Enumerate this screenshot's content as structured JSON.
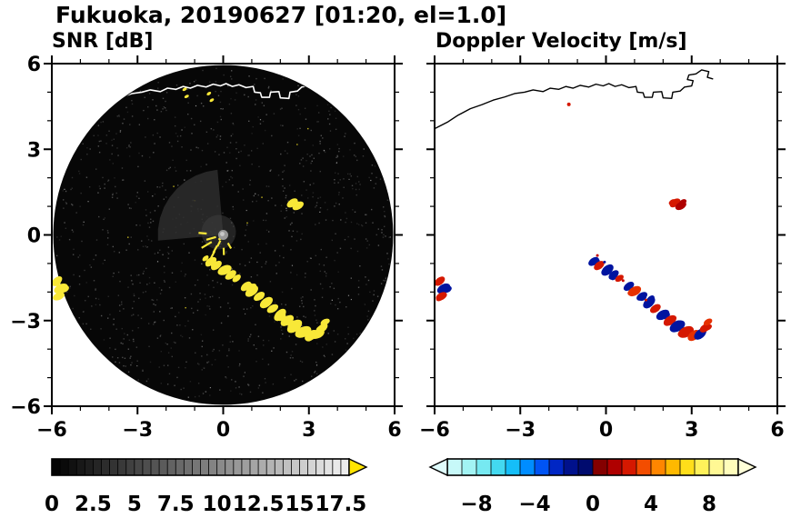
{
  "header": {
    "title": "Fukuoka, 20190627 [01:20, el=1.0]"
  },
  "panels": {
    "snr": {
      "title": "SNR [dB]"
    },
    "doppler": {
      "title": "Doppler Velocity [m/s]"
    }
  },
  "shared": {
    "coastline": [
      [
        -6.0,
        3.72
      ],
      [
        -5.55,
        3.95
      ],
      [
        -5.2,
        4.18
      ],
      [
        -4.75,
        4.42
      ],
      [
        -4.35,
        4.56
      ],
      [
        -3.95,
        4.72
      ],
      [
        -3.55,
        4.83
      ],
      [
        -3.2,
        4.95
      ],
      [
        -2.85,
        5.0
      ],
      [
        -2.55,
        5.08
      ],
      [
        -2.2,
        5.02
      ],
      [
        -1.95,
        5.14
      ],
      [
        -1.65,
        5.1
      ],
      [
        -1.4,
        5.2
      ],
      [
        -1.15,
        5.14
      ],
      [
        -0.9,
        5.24
      ],
      [
        -0.6,
        5.18
      ],
      [
        -0.35,
        5.28
      ],
      [
        -0.1,
        5.22
      ],
      [
        0.1,
        5.3
      ],
      [
        0.32,
        5.2
      ],
      [
        0.55,
        5.26
      ],
      [
        0.8,
        5.16
      ],
      [
        1.05,
        5.2
      ],
      [
        1.1,
        5.0
      ],
      [
        1.3,
        4.98
      ],
      [
        1.35,
        4.82
      ],
      [
        1.62,
        4.82
      ],
      [
        1.66,
        5.0
      ],
      [
        1.95,
        5.02
      ],
      [
        2.0,
        4.8
      ],
      [
        2.3,
        4.78
      ],
      [
        2.34,
        5.0
      ],
      [
        2.6,
        5.04
      ],
      [
        2.75,
        5.18
      ],
      [
        3.0,
        5.22
      ],
      [
        3.05,
        5.4
      ],
      [
        2.85,
        5.44
      ],
      [
        2.9,
        5.6
      ],
      [
        3.15,
        5.64
      ],
      [
        3.35,
        5.78
      ],
      [
        3.6,
        5.72
      ],
      [
        3.55,
        5.52
      ],
      [
        3.75,
        5.46
      ]
    ]
  },
  "chart_data": [
    {
      "type": "heatmap",
      "name": "snr",
      "title": "SNR [dB]",
      "units": "dB",
      "xlim": [
        -6,
        6
      ],
      "ylim": [
        -6,
        6
      ],
      "xticks": [
        -6,
        -3,
        0,
        3,
        6
      ],
      "yticks": [
        -6,
        -3,
        0,
        3,
        6
      ],
      "minor_step": 1,
      "show_ylabels": true,
      "scan_radius": 5.95,
      "scan_bg": "#070707",
      "echo_color": "#f8e838",
      "coast_color": "#ffffff",
      "echo_value_note": "yellow echoes exceed 17.5 dB (over-range)",
      "echoes": [
        [
          -0.62,
          -0.82,
          3
        ],
        [
          -0.43,
          -0.93,
          5
        ],
        [
          -0.24,
          -1.07,
          5
        ],
        [
          0.05,
          -1.23,
          6
        ],
        [
          0.27,
          -1.4,
          5
        ],
        [
          0.47,
          -1.52,
          4
        ],
        [
          0.8,
          -1.8,
          5
        ],
        [
          1.0,
          -1.97,
          6
        ],
        [
          1.26,
          -2.15,
          5
        ],
        [
          1.51,
          -2.37,
          6
        ],
        [
          1.73,
          -2.58,
          5
        ],
        [
          1.99,
          -2.8,
          6
        ],
        [
          2.24,
          -3.0,
          6
        ],
        [
          2.5,
          -3.2,
          7
        ],
        [
          2.8,
          -3.4,
          7
        ],
        [
          3.08,
          -3.52,
          6
        ],
        [
          3.3,
          -3.47,
          6
        ],
        [
          3.47,
          -3.26,
          5
        ],
        [
          3.57,
          -3.05,
          4
        ],
        [
          2.42,
          1.12,
          5
        ],
        [
          2.62,
          1.02,
          5
        ],
        [
          -5.82,
          -1.62,
          5
        ],
        [
          -5.68,
          -1.88,
          6
        ],
        [
          -5.76,
          -2.15,
          5
        ],
        [
          -1.35,
          5.1,
          2
        ],
        [
          -1.28,
          4.85,
          2
        ],
        [
          -0.5,
          4.95,
          2
        ],
        [
          -0.4,
          4.72,
          2
        ],
        [
          0.02,
          0.05,
          2
        ],
        [
          -0.1,
          -0.12,
          2
        ]
      ],
      "streaks": [
        [
          -0.42,
          -0.12,
          11
        ],
        [
          -0.58,
          -0.35,
          13
        ],
        [
          -0.28,
          -0.5,
          9
        ],
        [
          0.02,
          -0.58,
          8
        ],
        [
          -0.72,
          0.06,
          9
        ],
        [
          0.22,
          -0.38,
          7
        ],
        [
          -0.38,
          -0.72,
          11
        ],
        [
          -0.15,
          -0.3,
          7
        ]
      ],
      "colorbar": {
        "range": [
          0,
          18
        ],
        "seg_step": 0.5,
        "labels": [
          0,
          2.5,
          5,
          7.5,
          10,
          12.5,
          15,
          17.5
        ],
        "stops": [
          [
            0,
            "#000000"
          ],
          [
            17.5,
            "#ececec"
          ]
        ],
        "over_color": "#ffe400",
        "arrow_left": false,
        "arrow_right": true
      }
    },
    {
      "type": "scatter",
      "name": "doppler",
      "title": "Doppler Velocity [m/s]",
      "units": "m/s",
      "xlim": [
        -6,
        6
      ],
      "ylim": [
        -6,
        6
      ],
      "xticks": [
        -6,
        -3,
        0,
        3,
        6
      ],
      "yticks": [
        -6,
        -3,
        0,
        3,
        6
      ],
      "minor_step": 1,
      "show_ylabels": false,
      "coast_color": "#000000",
      "points": [
        [
          -0.43,
          -0.93,
          -2,
          5
        ],
        [
          -0.24,
          -1.07,
          2.5,
          5
        ],
        [
          0.05,
          -1.23,
          -2,
          6
        ],
        [
          0.27,
          -1.4,
          -2,
          5
        ],
        [
          0.47,
          -1.52,
          2.5,
          4
        ],
        [
          0.8,
          -1.8,
          -2,
          5
        ],
        [
          1.0,
          -1.97,
          3,
          6
        ],
        [
          1.26,
          -2.15,
          -2,
          5
        ],
        [
          1.51,
          -2.37,
          -2,
          6
        ],
        [
          1.73,
          -2.58,
          2.5,
          5
        ],
        [
          1.99,
          -2.8,
          -2,
          6
        ],
        [
          2.24,
          -3.0,
          2.5,
          6
        ],
        [
          2.5,
          -3.2,
          -2,
          7
        ],
        [
          2.8,
          -3.4,
          2.5,
          7
        ],
        [
          3.08,
          -3.52,
          3,
          6
        ],
        [
          3.3,
          -3.47,
          -2,
          6
        ],
        [
          3.47,
          -3.26,
          2.5,
          5
        ],
        [
          3.57,
          -3.05,
          3,
          4
        ],
        [
          2.42,
          1.12,
          2.5,
          5
        ],
        [
          2.62,
          1.02,
          1.5,
          5
        ],
        [
          -5.82,
          -1.62,
          2.5,
          5
        ],
        [
          -5.68,
          -1.88,
          -2,
          6
        ],
        [
          -5.76,
          -2.15,
          2.5,
          5
        ],
        [
          -1.3,
          4.57,
          2.5,
          2
        ],
        [
          -0.3,
          -0.72,
          2,
          1.5
        ],
        [
          -0.05,
          -0.95,
          -2,
          1.5
        ],
        [
          0.6,
          -1.6,
          2,
          1.5
        ],
        [
          1.4,
          -2.28,
          2.5,
          1.5
        ]
      ],
      "colorbar": {
        "range": [
          -10,
          10
        ],
        "seg_step": 1,
        "labels": [
          -8,
          -4,
          0,
          4,
          8
        ],
        "stops": [
          [
            -10,
            "#d9fbfb"
          ],
          [
            -8,
            "#8ff1f1"
          ],
          [
            -6,
            "#2ad1f0"
          ],
          [
            -5,
            "#00aaff"
          ],
          [
            -4,
            "#0070ff"
          ],
          [
            -3,
            "#0038e8"
          ],
          [
            -2,
            "#0014a0"
          ],
          [
            -1,
            "#000d78"
          ],
          [
            -0.01,
            "#000a64"
          ],
          [
            0.01,
            "#6e0000"
          ],
          [
            1,
            "#9a0000"
          ],
          [
            2,
            "#c40000"
          ],
          [
            3,
            "#e63000"
          ],
          [
            4,
            "#ff6a00"
          ],
          [
            5,
            "#ffa200"
          ],
          [
            6,
            "#ffd000"
          ],
          [
            7,
            "#ffec33"
          ],
          [
            8,
            "#fff680"
          ],
          [
            10,
            "#ffffcf"
          ]
        ],
        "under_color": "#dffcfc",
        "over_color": "#ffffd8",
        "arrow_left": true,
        "arrow_right": true
      }
    }
  ]
}
